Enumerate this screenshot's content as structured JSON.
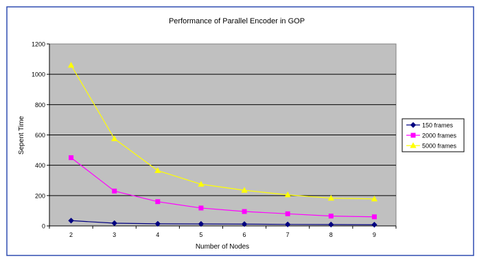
{
  "chart_data": {
    "type": "line",
    "title": "Performance of Parallel Encoder in GOP",
    "xlabel": "Number of Nodes",
    "ylabel": "Sepent Time",
    "x": [
      2,
      3,
      4,
      5,
      6,
      7,
      8,
      9
    ],
    "ylim": [
      0,
      1200
    ],
    "yticks": [
      0,
      200,
      400,
      600,
      800,
      1000,
      1200
    ],
    "grid": true,
    "plot_background": "#c0c0c0",
    "legend_position": "right",
    "series": [
      {
        "name": "150 frames",
        "values": [
          35,
          18,
          14,
          13,
          12,
          10,
          9,
          8
        ],
        "color": "#000080",
        "marker": "diamond"
      },
      {
        "name": "2000 frames",
        "values": [
          450,
          230,
          160,
          118,
          95,
          80,
          65,
          60
        ],
        "color": "#ff00ff",
        "marker": "square"
      },
      {
        "name": "5000 frames",
        "values": [
          1060,
          575,
          365,
          275,
          235,
          205,
          183,
          178
        ],
        "color": "#ffff00",
        "marker": "triangle"
      }
    ]
  }
}
